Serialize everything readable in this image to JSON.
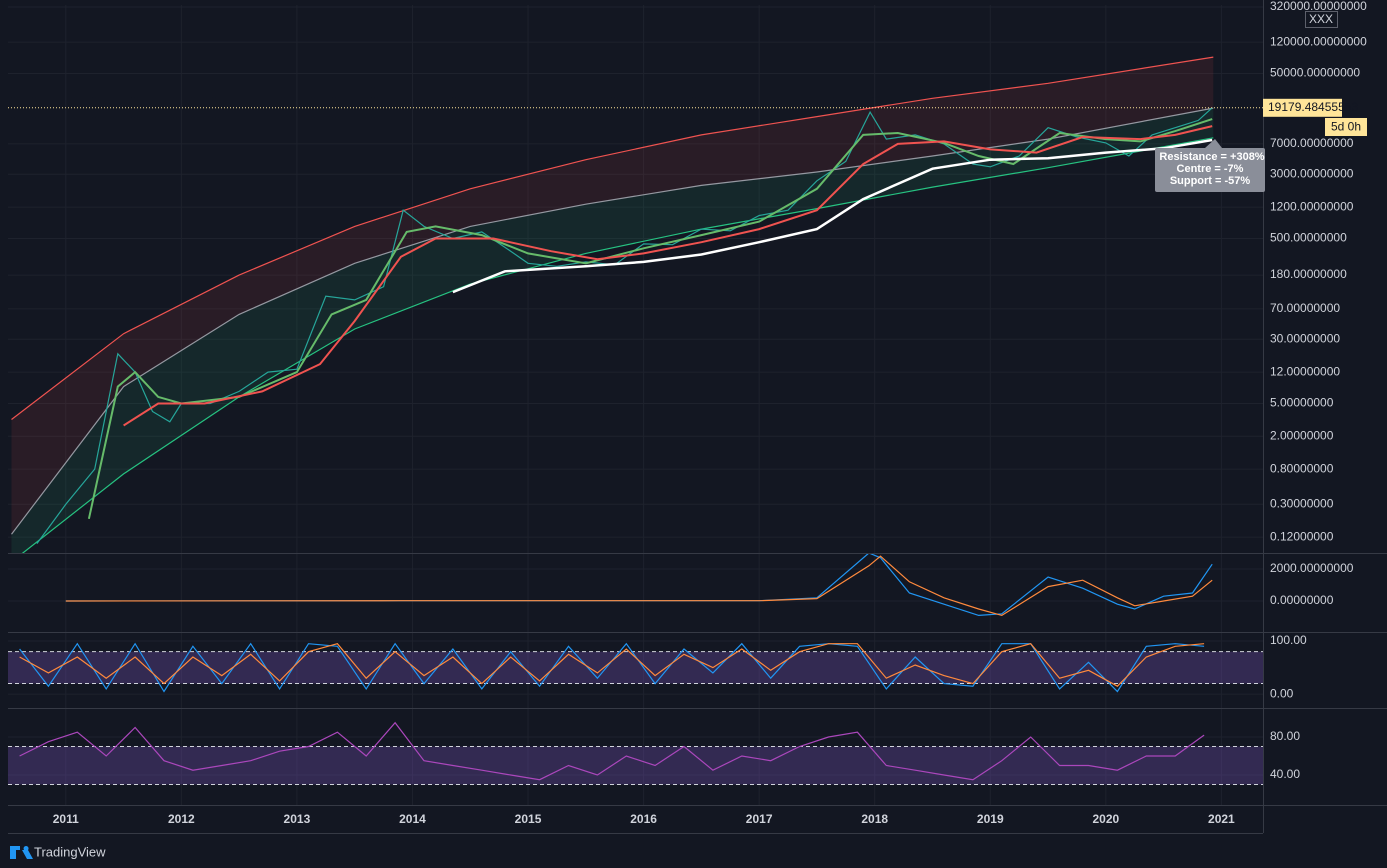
{
  "chart_data": [
    {
      "type": "line",
      "log_scale": true,
      "xlim": [
        2010.5,
        2021.36
      ],
      "ylim": [
        0.077,
        338000
      ],
      "yticks": [
        {
          "value": 320000,
          "label": "320000.00000000"
        },
        {
          "value": 120000,
          "label": "120000.00000000"
        },
        {
          "value": 50000,
          "label": "50000.00000000"
        },
        {
          "value": 7000,
          "label": "7000.00000000"
        },
        {
          "value": 3000,
          "label": "3000.00000000"
        },
        {
          "value": 1200,
          "label": "1200.00000000"
        },
        {
          "value": 500,
          "label": "500.00000000"
        },
        {
          "value": 180,
          "label": "180.00000000"
        },
        {
          "value": 70,
          "label": "70.00000000"
        },
        {
          "value": 30,
          "label": "30.00000000"
        },
        {
          "value": 12,
          "label": "12.00000000"
        },
        {
          "value": 5,
          "label": "5.00000000"
        },
        {
          "value": 2,
          "label": "2.00000000"
        },
        {
          "value": 0.8,
          "label": "0.80000000"
        },
        {
          "value": 0.3,
          "label": "0.30000000"
        },
        {
          "value": 0.12,
          "label": "0.12000000"
        }
      ],
      "price_line": {
        "value": 19179.48455553,
        "label": "19179.48455553"
      },
      "countdown": "5d 0h",
      "symbol_label": "XXX",
      "annotations": [
        "Resistance = +308%",
        "Centre = -7%",
        "Support = -57%"
      ],
      "channel_x": [
        2010.53,
        2011.5,
        2012.5,
        2013.5,
        2014.5,
        2015.5,
        2016.5,
        2017.5,
        2018.5,
        2019.5,
        2020.93
      ],
      "series": [
        {
          "color": "#ef5350",
          "values": [
            3.2,
            35,
            180,
            700,
            2000,
            4500,
            9000,
            15000,
            25000,
            38000,
            79000
          ]
        },
        {
          "color": "#9598a1",
          "values": [
            0.13,
            8,
            60,
            250,
            700,
            1300,
            2200,
            3200,
            5000,
            8000,
            19000
          ]
        },
        {
          "color": "#26c281",
          "values": [
            0.06,
            0.7,
            6,
            40,
            140,
            330,
            650,
            1150,
            2100,
            3600,
            8300
          ]
        },
        {
          "color": "#26a69a",
          "x": [
            2010.75,
            2011.0,
            2011.25,
            2011.45,
            2011.6,
            2011.75,
            2011.9,
            2012.0,
            2012.25,
            2012.5,
            2012.75,
            2013.0,
            2013.25,
            2013.5,
            2013.75,
            2013.92,
            2014.1,
            2014.35,
            2014.6,
            2014.85,
            2015.0,
            2015.25,
            2015.5,
            2015.75,
            2016.0,
            2016.25,
            2016.5,
            2016.75,
            2017.0,
            2017.25,
            2017.5,
            2017.75,
            2017.96,
            2018.1,
            2018.35,
            2018.6,
            2018.85,
            2019.0,
            2019.25,
            2019.5,
            2019.75,
            2020.0,
            2020.2,
            2020.4,
            2020.6,
            2020.8,
            2020.92
          ],
          "values": [
            0.1,
            0.3,
            0.8,
            20,
            12,
            4,
            3,
            5,
            5,
            7,
            12,
            13,
            100,
            90,
            130,
            1100,
            700,
            500,
            600,
            350,
            250,
            230,
            260,
            240,
            430,
            420,
            650,
            620,
            950,
            1100,
            2500,
            4300,
            17000,
            8000,
            9000,
            7000,
            4000,
            3700,
            5000,
            11000,
            8500,
            7200,
            5000,
            9000,
            11000,
            13500,
            19179
          ]
        },
        {
          "color": "#66bb6a",
          "x": [
            2011.2,
            2011.45,
            2011.6,
            2011.8,
            2012.0,
            2012.5,
            2013.0,
            2013.3,
            2013.6,
            2013.95,
            2014.2,
            2014.6,
            2015.0,
            2015.5,
            2016.0,
            2016.5,
            2017.0,
            2017.5,
            2017.9,
            2018.2,
            2018.6,
            2018.9,
            2019.2,
            2019.6,
            2020.0,
            2020.3,
            2020.6,
            2020.92
          ],
          "values": [
            0.2,
            8,
            12,
            6,
            5,
            6,
            12,
            60,
            90,
            600,
            700,
            550,
            330,
            250,
            380,
            550,
            800,
            2000,
            9000,
            9500,
            7200,
            5000,
            4000,
            9500,
            8000,
            7500,
            10000,
            14000
          ]
        },
        {
          "color": "#f05350",
          "x": [
            2011.5,
            2011.8,
            2012.2,
            2012.7,
            2013.2,
            2013.5,
            2013.9,
            2014.2,
            2014.7,
            2015.2,
            2015.6,
            2016.0,
            2016.5,
            2017.0,
            2017.5,
            2017.9,
            2018.2,
            2018.6,
            2019.0,
            2019.4,
            2019.8,
            2020.3,
            2020.6,
            2020.92
          ],
          "values": [
            2.7,
            5,
            5,
            7,
            15,
            50,
            300,
            500,
            500,
            350,
            280,
            330,
            450,
            650,
            1100,
            4000,
            7000,
            7500,
            6000,
            5500,
            8500,
            8000,
            9000,
            11500
          ]
        },
        {
          "color": "#ffffff",
          "x": [
            2014.35,
            2014.8,
            2015.5,
            2016.0,
            2016.5,
            2017.0,
            2017.5,
            2017.9,
            2018.5,
            2019.0,
            2019.5,
            2020.0,
            2020.5,
            2020.92
          ],
          "values": [
            112,
            200,
            230,
            260,
            320,
            450,
            650,
            1500,
            3500,
            4500,
            4700,
            5500,
            6200,
            7800
          ]
        }
      ]
    },
    {
      "type": "line",
      "xlim": [
        2010.5,
        2021.36
      ],
      "ylim": [
        -1940,
        3000
      ],
      "yticks": [
        {
          "value": 2000,
          "label": "2000.00000000"
        },
        {
          "value": 0,
          "label": "0.00000000"
        }
      ],
      "series": [
        {
          "color": "#2196f3",
          "x": [
            2011.0,
            2013.9,
            2017.0,
            2017.5,
            2017.95,
            2018.05,
            2018.3,
            2018.6,
            2018.9,
            2019.1,
            2019.5,
            2019.8,
            2020.1,
            2020.25,
            2020.5,
            2020.75,
            2020.92
          ],
          "values": [
            0,
            20,
            20,
            200,
            3000,
            2700,
            500,
            -200,
            -900,
            -800,
            1500,
            800,
            -200,
            -500,
            300,
            500,
            2300
          ]
        },
        {
          "color": "#ff8a3d",
          "x": [
            2011.0,
            2013.9,
            2017.0,
            2017.5,
            2017.95,
            2018.05,
            2018.3,
            2018.6,
            2018.9,
            2019.1,
            2019.5,
            2019.8,
            2020.1,
            2020.25,
            2020.5,
            2020.75,
            2020.92
          ],
          "values": [
            0,
            15,
            15,
            150,
            2200,
            2800,
            1200,
            200,
            -500,
            -900,
            900,
            1300,
            200,
            -300,
            0,
            300,
            1300
          ]
        }
      ]
    },
    {
      "type": "line",
      "xlim": [
        2010.5,
        2021.36
      ],
      "ylim": [
        -26,
        117
      ],
      "yticks": [
        {
          "value": 100,
          "label": "100.00"
        },
        {
          "value": 0,
          "label": "0.00"
        }
      ],
      "bands": [
        20,
        80
      ],
      "band_color": "#7e57c2",
      "series": [
        {
          "color": "#2196f3",
          "x": [
            2010.6,
            2010.85,
            2011.1,
            2011.35,
            2011.6,
            2011.85,
            2012.1,
            2012.35,
            2012.6,
            2012.85,
            2013.1,
            2013.35,
            2013.6,
            2013.85,
            2014.1,
            2014.35,
            2014.6,
            2014.85,
            2015.1,
            2015.35,
            2015.6,
            2015.85,
            2016.1,
            2016.35,
            2016.6,
            2016.85,
            2017.1,
            2017.35,
            2017.6,
            2017.85,
            2018.1,
            2018.35,
            2018.6,
            2018.85,
            2019.1,
            2019.35,
            2019.6,
            2019.85,
            2020.1,
            2020.35,
            2020.6,
            2020.85
          ],
          "values": [
            85,
            15,
            95,
            10,
            95,
            5,
            90,
            20,
            95,
            10,
            95,
            90,
            10,
            95,
            20,
            85,
            10,
            80,
            15,
            90,
            30,
            95,
            20,
            85,
            40,
            95,
            30,
            90,
            95,
            90,
            10,
            70,
            20,
            15,
            95,
            95,
            10,
            60,
            5,
            90,
            95,
            90
          ]
        },
        {
          "color": "#ff8a3d",
          "x": [
            2010.6,
            2010.85,
            2011.1,
            2011.35,
            2011.6,
            2011.85,
            2012.1,
            2012.35,
            2012.6,
            2012.85,
            2013.1,
            2013.35,
            2013.6,
            2013.85,
            2014.1,
            2014.35,
            2014.6,
            2014.85,
            2015.1,
            2015.35,
            2015.6,
            2015.85,
            2016.1,
            2016.35,
            2016.6,
            2016.85,
            2017.1,
            2017.35,
            2017.6,
            2017.85,
            2018.1,
            2018.35,
            2018.6,
            2018.85,
            2019.1,
            2019.35,
            2019.6,
            2019.85,
            2020.1,
            2020.35,
            2020.6,
            2020.85
          ],
          "values": [
            70,
            40,
            70,
            30,
            70,
            20,
            70,
            35,
            75,
            25,
            80,
            95,
            30,
            80,
            35,
            70,
            20,
            70,
            25,
            75,
            40,
            85,
            35,
            75,
            50,
            85,
            45,
            80,
            95,
            95,
            30,
            55,
            35,
            20,
            80,
            95,
            30,
            45,
            15,
            70,
            90,
            95
          ]
        }
      ]
    },
    {
      "type": "line",
      "xlim": [
        2010.5,
        2021.36
      ],
      "ylim": [
        8.4,
        110.5
      ],
      "yticks": [
        {
          "value": 80,
          "label": "80.00"
        },
        {
          "value": 40,
          "label": "40.00"
        }
      ],
      "xticks": [
        2011,
        2012,
        2013,
        2014,
        2015,
        2016,
        2017,
        2018,
        2019,
        2020,
        2021
      ],
      "bands": [
        30,
        70
      ],
      "band_color": "#7e57c2",
      "series": [
        {
          "color": "#ab47bc",
          "x": [
            2010.6,
            2010.85,
            2011.1,
            2011.35,
            2011.6,
            2011.85,
            2012.1,
            2012.35,
            2012.6,
            2012.85,
            2013.1,
            2013.35,
            2013.6,
            2013.85,
            2014.1,
            2014.35,
            2014.6,
            2014.85,
            2015.1,
            2015.35,
            2015.6,
            2015.85,
            2016.1,
            2016.35,
            2016.6,
            2016.85,
            2017.1,
            2017.35,
            2017.6,
            2017.85,
            2018.1,
            2018.35,
            2018.6,
            2018.85,
            2019.1,
            2019.35,
            2019.6,
            2019.85,
            2020.1,
            2020.35,
            2020.6,
            2020.85
          ],
          "values": [
            60,
            75,
            85,
            60,
            90,
            55,
            45,
            50,
            55,
            65,
            70,
            85,
            60,
            95,
            55,
            50,
            45,
            40,
            35,
            50,
            40,
            60,
            50,
            70,
            45,
            60,
            55,
            70,
            80,
            85,
            50,
            45,
            40,
            35,
            55,
            80,
            50,
            50,
            45,
            60,
            60,
            82
          ]
        }
      ]
    }
  ],
  "footer": {
    "brand": "TradingView"
  }
}
